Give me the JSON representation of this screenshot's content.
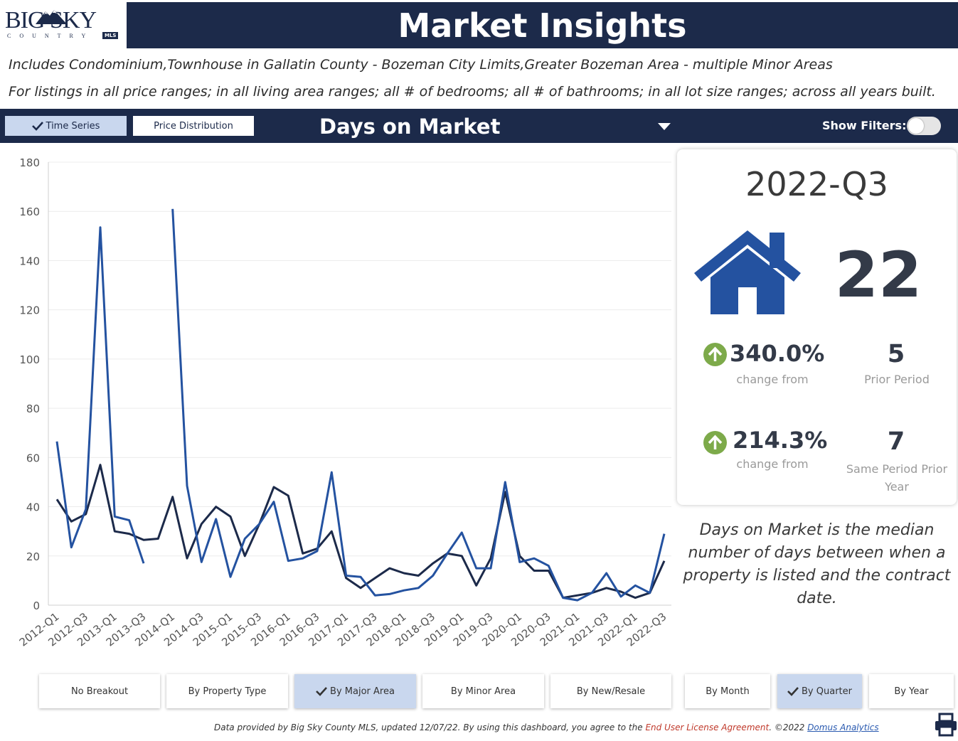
{
  "header": {
    "logo_text": "BIG SKY",
    "logo_sub": "COUNTRY",
    "logo_badge": "MLS",
    "title": "Market Insights"
  },
  "subtitles": {
    "line1": "Includes Condominium,Townhouse in Gallatin County - Bozeman City Limits,Greater Bozeman Area - multiple Minor Areas",
    "line2": "For listings in all price ranges; in all living area ranges; all # of bedrooms; all # of bathrooms; in all lot size ranges; across all years built."
  },
  "toolbar": {
    "time_series_label": "Time Series",
    "price_distribution_label": "Price Distribution",
    "metric": "Days on Market",
    "show_filters_label": "Show Filters:"
  },
  "kpi": {
    "period": "2022-Q3",
    "value": "22",
    "change_prior_pct": "340.0%",
    "change_from_label": "change from",
    "prior_period_value": "5",
    "prior_period_label": "Prior Period",
    "change_year_pct": "214.3%",
    "same_period_value": "7",
    "same_period_label": "Same Period Prior Year",
    "up_color": "#7daa4a"
  },
  "definition": "Days on Market is the median number of days between when a property is listed and the contract date.",
  "breakout_buttons": [
    {
      "label": "No Breakout",
      "active": false
    },
    {
      "label": "By Property Type",
      "active": false
    },
    {
      "label": "By Major Area",
      "active": true
    },
    {
      "label": "By Minor Area",
      "active": false
    },
    {
      "label": "By New/Resale",
      "active": false
    }
  ],
  "period_buttons": [
    {
      "label": "By Month",
      "active": false
    },
    {
      "label": "By Quarter",
      "active": true
    },
    {
      "label": "By Year",
      "active": false
    }
  ],
  "footer": {
    "text": "Data provided by Big Sky County MLS, updated 12/07/22.  By using this dashboard, you agree to the ",
    "eula": "End User License Agreement",
    "copyright": ".  ©2022 ",
    "link": "Domus Analytics"
  },
  "chart_data": {
    "type": "line",
    "ylim": [
      0,
      180
    ],
    "yticks": [
      0,
      20,
      40,
      60,
      80,
      100,
      120,
      140,
      160,
      180
    ],
    "x_tick_labels": [
      "2012-Q1",
      "2012-Q3",
      "2013-Q1",
      "2013-Q3",
      "2014-Q1",
      "2014-Q3",
      "2015-Q1",
      "2015-Q3",
      "2016-Q1",
      "2016-Q3",
      "2017-Q1",
      "2017-Q3",
      "2018-Q1",
      "2018-Q3",
      "2019-Q1",
      "2019-Q3",
      "2020-Q1",
      "2020-Q3",
      "2021-Q1",
      "2021-Q3",
      "2022-Q1",
      "2022-Q3"
    ],
    "grid": true,
    "series": [
      {
        "color": "#1c2a4a",
        "points": [
          [
            0,
            43
          ],
          [
            1,
            34
          ],
          [
            2,
            37
          ],
          [
            3,
            57
          ],
          [
            4,
            30
          ],
          [
            5,
            29
          ],
          [
            6,
            26.5
          ],
          [
            7,
            27
          ],
          [
            8,
            44
          ],
          [
            9,
            19
          ],
          [
            10,
            33
          ],
          [
            11,
            40
          ],
          [
            12,
            36
          ],
          [
            13,
            20
          ],
          [
            14,
            33
          ],
          [
            15,
            48
          ],
          [
            16,
            44.5
          ],
          [
            17,
            21
          ],
          [
            18,
            23
          ],
          [
            19,
            30
          ],
          [
            20,
            11
          ],
          [
            21,
            7
          ],
          [
            22,
            11
          ],
          [
            23,
            15
          ],
          [
            24,
            13
          ],
          [
            25,
            12
          ],
          [
            26,
            17
          ],
          [
            27,
            21
          ],
          [
            28,
            20
          ],
          [
            29,
            8
          ],
          [
            30,
            19
          ],
          [
            31,
            46
          ],
          [
            32,
            20
          ],
          [
            33,
            14
          ],
          [
            34,
            14
          ],
          [
            35,
            3
          ],
          [
            36,
            4
          ],
          [
            37,
            5
          ],
          [
            38,
            7
          ],
          [
            39,
            5.5
          ],
          [
            40,
            3
          ],
          [
            41,
            5
          ],
          [
            42,
            18
          ]
        ]
      },
      {
        "color": "#2452a0",
        "points": [
          [
            0,
            66.5
          ],
          [
            1,
            23.5
          ],
          [
            2,
            39
          ],
          [
            3,
            153.5
          ],
          [
            4,
            36
          ],
          [
            5,
            34.5
          ],
          [
            6,
            17
          ],
          [
            8,
            161
          ],
          [
            9,
            48.5
          ],
          [
            10,
            17.5
          ],
          [
            11,
            35
          ],
          [
            12,
            11.5
          ],
          [
            13,
            27
          ],
          [
            14,
            33
          ],
          [
            15,
            42
          ],
          [
            16,
            18
          ],
          [
            17,
            19
          ],
          [
            18,
            22
          ],
          [
            19,
            54
          ],
          [
            20,
            12
          ],
          [
            21,
            11.5
          ],
          [
            22,
            4
          ],
          [
            23,
            4.5
          ],
          [
            24,
            6
          ],
          [
            25,
            7
          ],
          [
            26,
            12
          ],
          [
            27,
            21
          ],
          [
            28,
            29.5
          ],
          [
            29,
            15
          ],
          [
            30,
            15
          ],
          [
            31,
            50
          ],
          [
            32,
            17.5
          ],
          [
            33,
            19
          ],
          [
            34,
            16
          ],
          [
            35,
            3
          ],
          [
            36,
            2
          ],
          [
            37,
            5
          ],
          [
            38,
            13
          ],
          [
            39,
            3.5
          ],
          [
            40,
            8
          ],
          [
            41,
            5
          ],
          [
            42,
            29
          ]
        ]
      }
    ]
  }
}
